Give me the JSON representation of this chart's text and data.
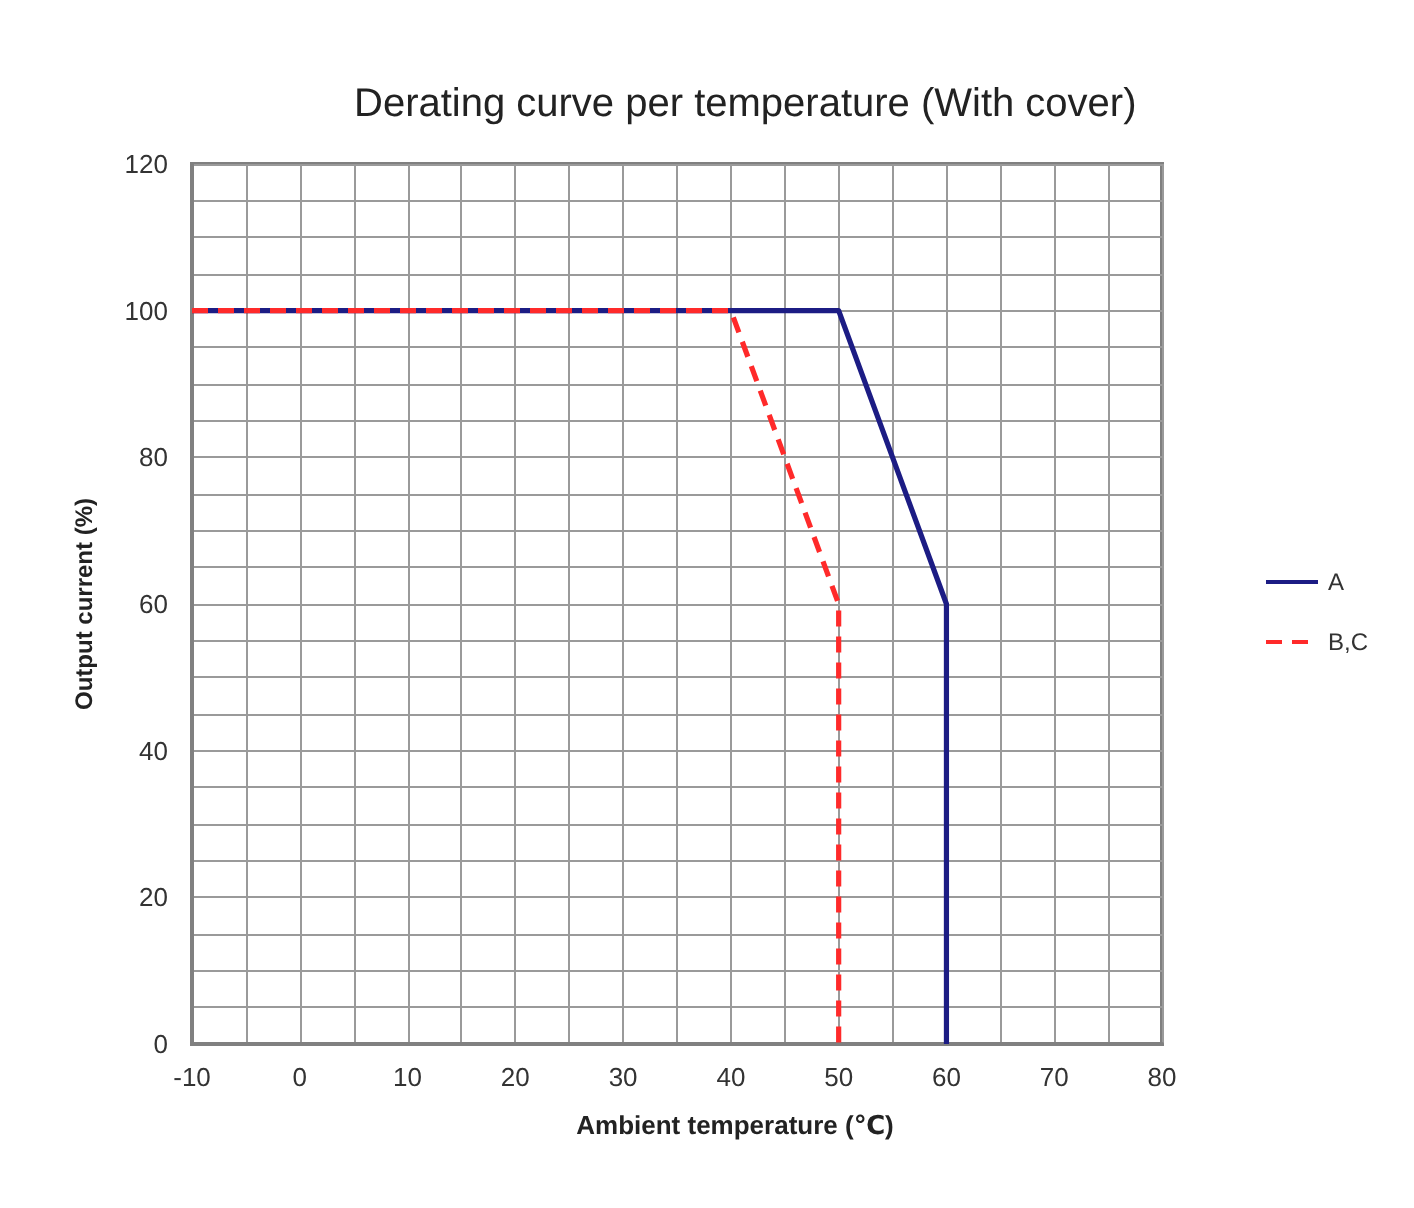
{
  "chart_data": {
    "type": "line",
    "title": "Derating curve per temperature (With cover)",
    "xlabel": "Ambient temperature (℃)",
    "ylabel": "Output current (%)",
    "xlim": [
      -10,
      80
    ],
    "xticks": [
      -10,
      {
        "value": -5,
        "label": null
      },
      0,
      {
        "value": 5,
        "label": null
      },
      10,
      {
        "value": 15,
        "label": null
      },
      20,
      {
        "value": 25,
        "label": null
      },
      30,
      {
        "value": 35,
        "label": null
      },
      40,
      {
        "value": 45,
        "label": null
      },
      50,
      {
        "value": 55,
        "label": null
      },
      60,
      {
        "value": 65,
        "label": null
      },
      70,
      {
        "value": 75,
        "label": null
      },
      80
    ],
    "ylim": [
      0,
      120
    ],
    "yticks": [
      0,
      {
        "value": 5,
        "label": null
      },
      {
        "value": 10,
        "label": null
      },
      {
        "value": 15,
        "label": null
      },
      20,
      {
        "value": 25,
        "label": null
      },
      {
        "value": 30,
        "label": null
      },
      {
        "value": 35,
        "label": null
      },
      40,
      {
        "value": 45,
        "label": null
      },
      {
        "value": 50,
        "label": null
      },
      {
        "value": 55,
        "label": null
      },
      60,
      {
        "value": 65,
        "label": null
      },
      {
        "value": 70,
        "label": null
      },
      {
        "value": 75,
        "label": null
      },
      80,
      {
        "value": 85,
        "label": null
      },
      {
        "value": 90,
        "label": null
      },
      {
        "value": 95,
        "label": null
      },
      100,
      {
        "value": 105,
        "label": null
      },
      {
        "value": 110,
        "label": null
      },
      {
        "value": 115,
        "label": null
      },
      120
    ],
    "grid": true,
    "legend": "right",
    "marker": "none",
    "series": [
      {
        "name": "A",
        "color": "#1c1c84",
        "x": [
          -10,
          50,
          60,
          60
        ],
        "values": [
          100,
          100,
          60,
          0
        ],
        "line_style": "solid"
      },
      {
        "name": "B,C",
        "color": "#ff2a2a",
        "x": [
          -10,
          40,
          50,
          50
        ],
        "values": [
          100,
          100,
          60,
          0
        ],
        "line_style": "dashed"
      }
    ]
  }
}
